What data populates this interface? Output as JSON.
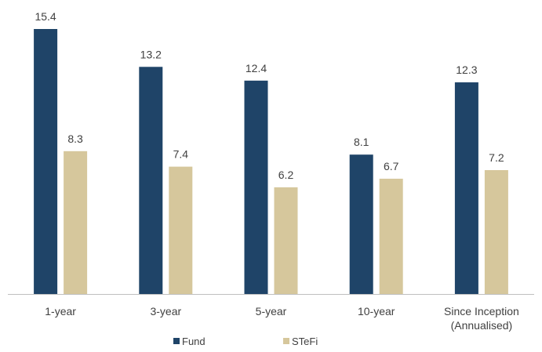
{
  "chart_data": {
    "type": "bar",
    "categories": [
      "1-year",
      "3-year",
      "5-year",
      "10-year",
      "Since Inception\n(Annualised)"
    ],
    "series": [
      {
        "name": "Fund",
        "values": [
          15.4,
          13.2,
          12.4,
          8.1,
          12.3
        ],
        "color": "#1f4468"
      },
      {
        "name": "STeFi",
        "values": [
          8.3,
          7.4,
          6.2,
          6.7,
          7.2
        ],
        "color": "#d6c79c"
      }
    ],
    "title": "",
    "xlabel": "",
    "ylabel": "",
    "ylim": [
      0,
      15.4
    ],
    "grid": false,
    "legend": "bottom",
    "data_labels": true
  }
}
